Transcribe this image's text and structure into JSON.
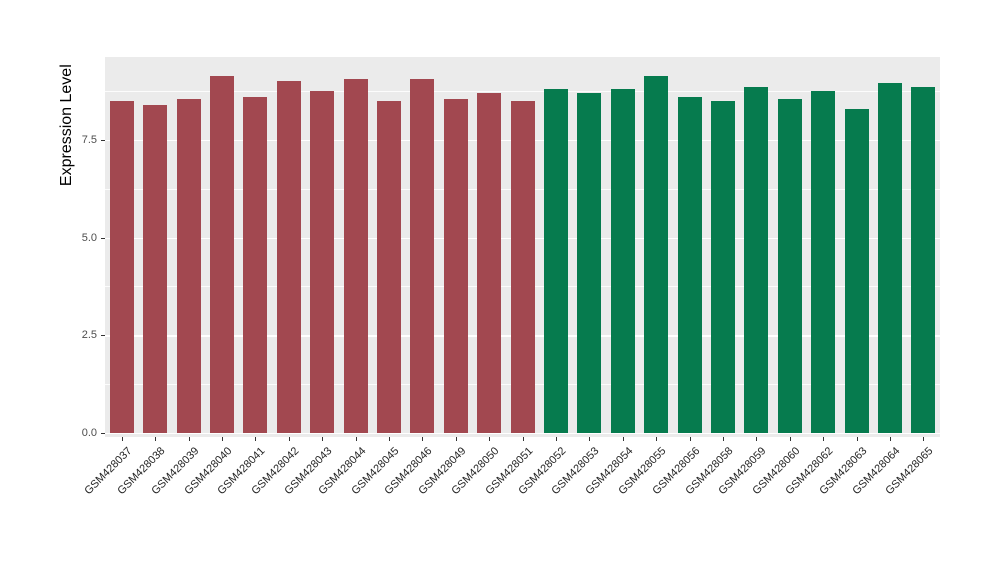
{
  "chart_data": {
    "type": "bar",
    "title": "",
    "xlabel": "",
    "ylabel": "Expression Level",
    "ylim": [
      0,
      9.6
    ],
    "yticks": [
      0.0,
      2.5,
      5.0,
      7.5
    ],
    "ytick_labels": [
      "0.0",
      "2.5",
      "5.0",
      "7.5"
    ],
    "minor_gridlines": [
      1.25,
      3.75,
      6.25,
      8.75
    ],
    "grid": "on",
    "legend_position": "none",
    "categories": [
      "GSM428037",
      "GSM428038",
      "GSM428039",
      "GSM428040",
      "GSM428041",
      "GSM428042",
      "GSM428043",
      "GSM428044",
      "GSM428045",
      "GSM428046",
      "GSM428049",
      "GSM428050",
      "GSM428051",
      "GSM428052",
      "GSM428053",
      "GSM428054",
      "GSM428055",
      "GSM428056",
      "GSM428058",
      "GSM428059",
      "GSM428060",
      "GSM428062",
      "GSM428063",
      "GSM428064",
      "GSM428065"
    ],
    "values": [
      8.5,
      8.4,
      8.55,
      9.15,
      8.6,
      9.0,
      8.75,
      9.05,
      8.5,
      9.05,
      8.55,
      8.7,
      8.5,
      8.8,
      8.7,
      8.8,
      9.15,
      8.6,
      8.5,
      8.85,
      8.55,
      8.75,
      8.3,
      8.95,
      8.85
    ],
    "bar_groups": [
      "groupA",
      "groupA",
      "groupA",
      "groupA",
      "groupA",
      "groupA",
      "groupA",
      "groupA",
      "groupA",
      "groupA",
      "groupA",
      "groupA",
      "groupA",
      "groupB",
      "groupB",
      "groupB",
      "groupB",
      "groupB",
      "groupB",
      "groupB",
      "groupB",
      "groupB",
      "groupB",
      "groupB",
      "groupB"
    ],
    "group_colors": {
      "groupA": "#A24850",
      "groupB": "#067B4E"
    },
    "panel_background": "#EBEBEB",
    "grid_color": "#FFFFFF",
    "axis_text_color": "#4D4D4D",
    "axis_title_color": "#000000"
  }
}
